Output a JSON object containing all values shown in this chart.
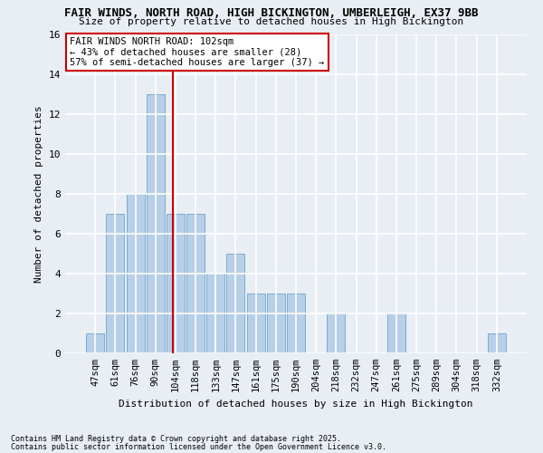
{
  "title1": "FAIR WINDS, NORTH ROAD, HIGH BICKINGTON, UMBERLEIGH, EX37 9BB",
  "title2": "Size of property relative to detached houses in High Bickington",
  "xlabel": "Distribution of detached houses by size in High Bickington",
  "ylabel": "Number of detached properties",
  "categories": [
    "47sqm",
    "61sqm",
    "76sqm",
    "90sqm",
    "104sqm",
    "118sqm",
    "133sqm",
    "147sqm",
    "161sqm",
    "175sqm",
    "190sqm",
    "204sqm",
    "218sqm",
    "232sqm",
    "247sqm",
    "261sqm",
    "275sqm",
    "289sqm",
    "304sqm",
    "318sqm",
    "332sqm"
  ],
  "values": [
    1,
    7,
    8,
    13,
    7,
    7,
    4,
    5,
    3,
    3,
    3,
    0,
    2,
    0,
    0,
    2,
    0,
    0,
    0,
    0,
    1
  ],
  "bar_color": "#b8cfe8",
  "bar_edge_color": "#7aadd0",
  "vline_x": 3.857,
  "vline_color": "#cc0000",
  "annotation_text": "FAIR WINDS NORTH ROAD: 102sqm\n← 43% of detached houses are smaller (28)\n57% of semi-detached houses are larger (37) →",
  "annotation_box_color": "white",
  "annotation_box_edge": "#cc0000",
  "ylim": [
    0,
    16
  ],
  "yticks": [
    0,
    2,
    4,
    6,
    8,
    10,
    12,
    14,
    16
  ],
  "footnote1": "Contains HM Land Registry data © Crown copyright and database right 2025.",
  "footnote2": "Contains public sector information licensed under the Open Government Licence v3.0.",
  "background_color": "#e8eef4",
  "grid_color": "white"
}
